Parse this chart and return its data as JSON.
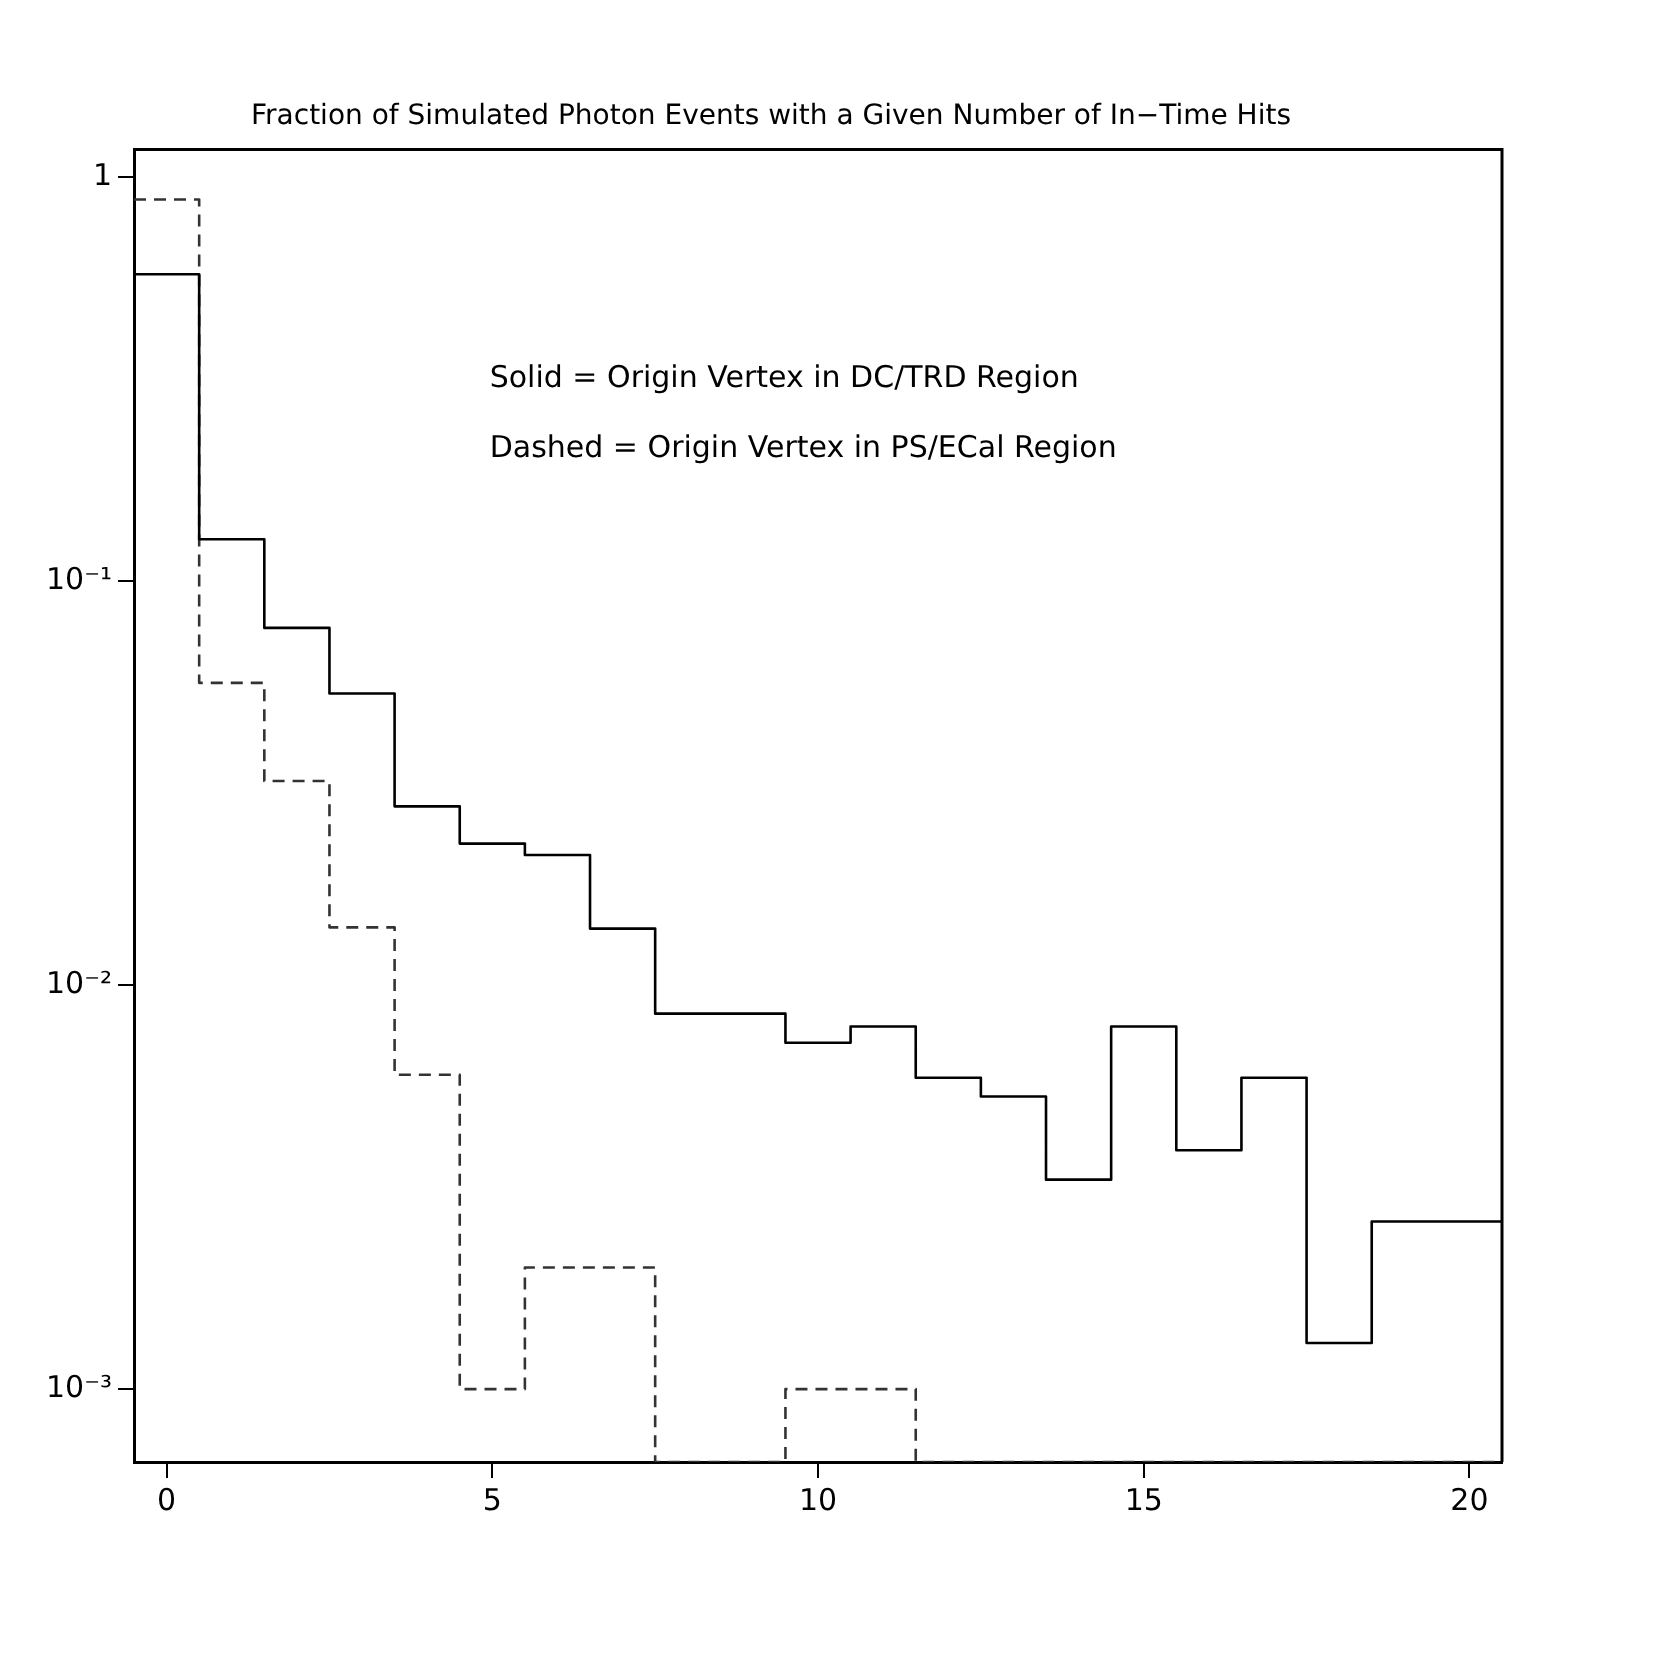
{
  "chart_data": {
    "type": "histogram",
    "title": "Fraction of Simulated Photon Events with a Given Number of In−Time Hits",
    "bins": [
      -0.5,
      0.5,
      1.5,
      2.5,
      3.5,
      4.5,
      5.5,
      6.5,
      7.5,
      8.5,
      9.5,
      10.5,
      11.5,
      12.5,
      13.5,
      14.5,
      15.5,
      16.5,
      17.5,
      18.5,
      19.5,
      20.5
    ],
    "series": [
      {
        "color": "#000000",
        "line_style": "solid",
        "values": [
          0.575,
          0.127,
          0.0766,
          0.0527,
          0.0277,
          0.0224,
          0.021,
          0.0138,
          0.0085,
          0.0085,
          0.0072,
          0.0079,
          0.0059,
          0.0053,
          0.0033,
          0.0079,
          0.0039,
          0.0059,
          0.0013,
          0.0026,
          0.0026
        ]
      },
      {
        "color": "#333333",
        "line_style": "dashed",
        "values": [
          0.88,
          0.056,
          0.032,
          0.0139,
          0.006,
          0.001,
          0.002,
          0.002,
          null,
          null,
          0.001,
          0.001,
          null,
          null,
          null,
          null,
          null,
          null,
          null,
          null,
          null
        ]
      }
    ],
    "xlim": [
      -0.5,
      20.5
    ],
    "xticks": [
      0,
      5,
      10,
      15,
      20
    ],
    "ylim": [
      0.00066,
      1.17
    ],
    "yticks": [
      {
        "value": 0.001,
        "label": "10⁻³"
      },
      {
        "value": 0.01,
        "label": "10⁻²"
      },
      {
        "value": 0.1,
        "label": "10⁻¹"
      },
      1
    ],
    "log": "y",
    "grid": false,
    "legend": false,
    "annotations": [
      "Solid = Origin Vertex in DC/TRD Region",
      "Dashed = Origin Vertex in PS/ECal Region"
    ]
  }
}
